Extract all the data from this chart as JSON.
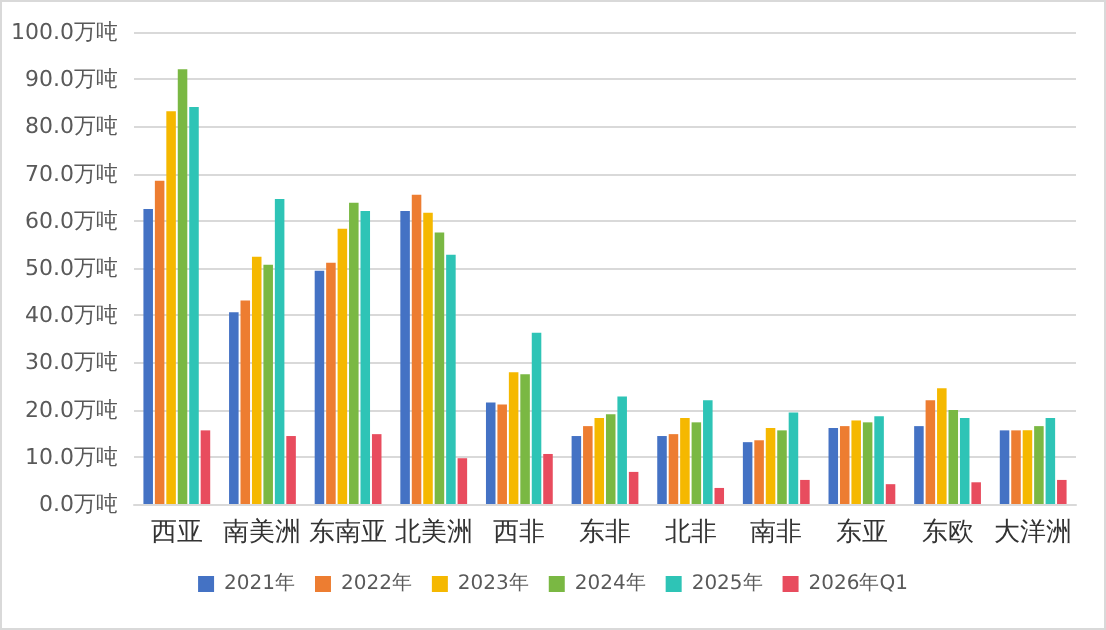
{
  "chart_data": {
    "type": "bar",
    "categories": [
      "西亚",
      "南美洲",
      "东南亚",
      "北美洲",
      "西非",
      "东非",
      "北非",
      "南非",
      "东亚",
      "东欧",
      "大洋洲"
    ],
    "series": [
      {
        "name": "2021年",
        "color": "#4472c4",
        "values": [
          62.5,
          40.6,
          49.4,
          62.1,
          21.5,
          14.4,
          14.4,
          13.1,
          16.1,
          16.5,
          15.6
        ]
      },
      {
        "name": "2022年",
        "color": "#ed7d31",
        "values": [
          68.5,
          43.1,
          51.1,
          65.5,
          21.1,
          16.5,
          14.8,
          13.5,
          16.5,
          22.0,
          15.6
        ]
      },
      {
        "name": "2023年",
        "color": "#f5b800",
        "values": [
          83.2,
          52.4,
          58.3,
          61.7,
          27.9,
          18.2,
          18.2,
          16.1,
          17.7,
          24.5,
          15.6
        ]
      },
      {
        "name": "2024年",
        "color": "#7ab843",
        "values": [
          92.1,
          50.7,
          63.8,
          57.5,
          27.5,
          19.0,
          17.3,
          15.6,
          17.3,
          19.9,
          16.5
        ]
      },
      {
        "name": "2025年",
        "color": "#2ec4b6",
        "values": [
          84.1,
          64.6,
          62.1,
          52.8,
          36.3,
          22.8,
          22.0,
          19.4,
          18.6,
          18.2,
          18.2
        ]
      },
      {
        "name": "2026年Q1",
        "color": "#e84c5e",
        "values": [
          15.6,
          14.4,
          14.8,
          9.7,
          10.6,
          6.8,
          3.4,
          5.1,
          4.2,
          4.6,
          5.1
        ]
      }
    ],
    "ylim": [
      0,
      100
    ],
    "yticks": [
      {
        "value": 0,
        "label": "0.0万吨"
      },
      {
        "value": 10,
        "label": "10.0万吨"
      },
      {
        "value": 20,
        "label": "20.0万吨"
      },
      {
        "value": 30,
        "label": "30.0万吨"
      },
      {
        "value": 40,
        "label": "40.0万吨"
      },
      {
        "value": 50,
        "label": "50.0万吨"
      },
      {
        "value": 60,
        "label": "60.0万吨"
      },
      {
        "value": 70,
        "label": "70.0万吨"
      },
      {
        "value": 80,
        "label": "80.0万吨"
      },
      {
        "value": 90,
        "label": "90.0万吨"
      },
      {
        "value": 100,
        "label": "100.0万吨"
      }
    ],
    "grid": "y",
    "legend": "bottom"
  }
}
